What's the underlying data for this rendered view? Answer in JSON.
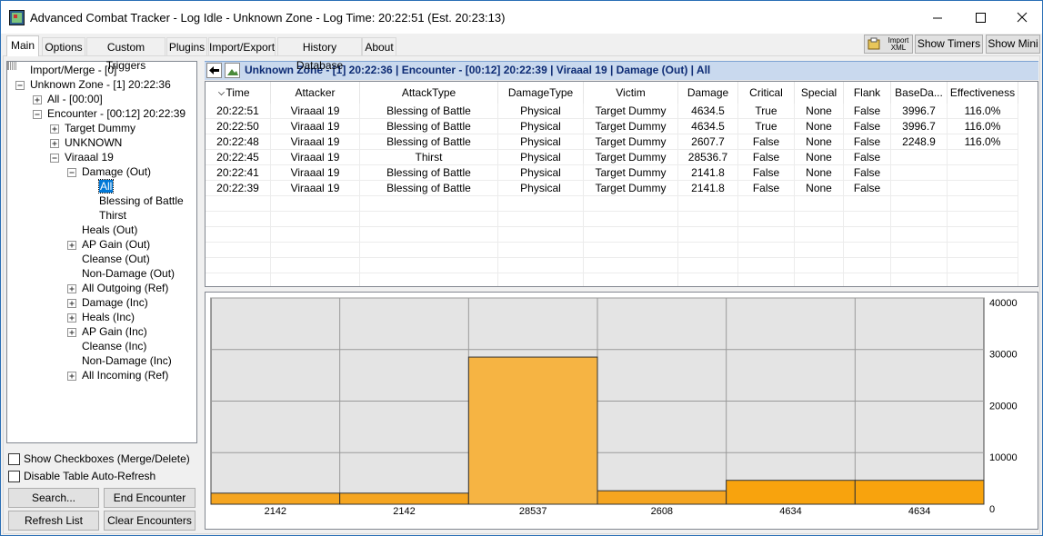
{
  "window": {
    "title": "Advanced Combat Tracker - Log Idle - Unknown Zone - Log Time: 20:22:51 (Est. 20:23:13)"
  },
  "tabs": [
    "Main",
    "Options",
    "Custom Triggers",
    "Plugins",
    "Import/Export",
    "History Database",
    "About"
  ],
  "toolbar": {
    "import_xml": "Import XML",
    "show_timers": "Show Timers",
    "show_mini": "Show Mini"
  },
  "tree": [
    {
      "label": "Import/Merge - [0]"
    },
    {
      "label": "Unknown Zone - [1] 20:22:36",
      "expanded": true,
      "children": [
        {
          "label": "All - [00:00]",
          "expanded": false
        },
        {
          "label": "Encounter - [00:12] 20:22:39",
          "expanded": true,
          "children": [
            {
              "label": "Target Dummy",
              "expanded": false
            },
            {
              "label": "UNKNOWN",
              "expanded": false
            },
            {
              "label": "Viraaal 19",
              "expanded": true,
              "children": [
                {
                  "label": "Damage (Out)",
                  "expanded": true,
                  "children": [
                    {
                      "label": "All",
                      "selected": true
                    },
                    {
                      "label": "Blessing of Battle"
                    },
                    {
                      "label": "Thirst"
                    }
                  ]
                },
                {
                  "label": "Heals (Out)"
                },
                {
                  "label": "AP Gain (Out)",
                  "expanded": false
                },
                {
                  "label": "Cleanse (Out)"
                },
                {
                  "label": "Non-Damage (Out)"
                },
                {
                  "label": "All Outgoing (Ref)",
                  "expanded": false
                },
                {
                  "label": "Damage (Inc)",
                  "expanded": false
                },
                {
                  "label": "Heals (Inc)",
                  "expanded": false
                },
                {
                  "label": "AP Gain (Inc)",
                  "expanded": false
                },
                {
                  "label": "Cleanse (Inc)"
                },
                {
                  "label": "Non-Damage (Inc)"
                },
                {
                  "label": "All Incoming (Ref)",
                  "expanded": false
                }
              ]
            }
          ]
        }
      ]
    }
  ],
  "checkboxes": [
    "Show Checkboxes (Merge/Delete)",
    "Disable Table Auto-Refresh"
  ],
  "buttons": [
    "Search...",
    "End Encounter",
    "Refresh List",
    "Clear Encounters"
  ],
  "breadcrumb": "Unknown Zone - [1] 20:22:36 | Encounter - [00:12] 20:22:39 | Viraaal 19 | Damage (Out) | All",
  "table": {
    "columns": [
      "Time",
      "Attacker",
      "AttackType",
      "DamageType",
      "Victim",
      "Damage",
      "Critical",
      "Special",
      "Flank",
      "BaseDa...",
      "Effectiveness"
    ],
    "rows": [
      [
        "20:22:51",
        "Viraaal 19",
        "Blessing of Battle",
        "Physical",
        "Target Dummy",
        "4634.5",
        "True",
        "None",
        "False",
        "3996.7",
        "116.0%"
      ],
      [
        "20:22:50",
        "Viraaal 19",
        "Blessing of Battle",
        "Physical",
        "Target Dummy",
        "4634.5",
        "True",
        "None",
        "False",
        "3996.7",
        "116.0%"
      ],
      [
        "20:22:48",
        "Viraaal 19",
        "Blessing of Battle",
        "Physical",
        "Target Dummy",
        "2607.7",
        "False",
        "None",
        "False",
        "2248.9",
        "116.0%"
      ],
      [
        "20:22:45",
        "Viraaal 19",
        "Thirst",
        "Physical",
        "Target Dummy",
        "28536.7",
        "False",
        "None",
        "False",
        null,
        null
      ],
      [
        "20:22:41",
        "Viraaal 19",
        "Blessing of Battle",
        "Physical",
        "Target Dummy",
        "2141.8",
        "False",
        "None",
        "False",
        null,
        null
      ],
      [
        "20:22:39",
        "Viraaal 19",
        "Blessing of Battle",
        "Physical",
        "Target Dummy",
        "2141.8",
        "False",
        "None",
        "False",
        null,
        null
      ]
    ]
  },
  "chart_data": {
    "type": "bar",
    "values": [
      2141.8,
      2141.8,
      28536.7,
      2607.7,
      4634.5,
      4634.5
    ],
    "value_labels": [
      "2142",
      "2142",
      "28537",
      "2608",
      "4634",
      "4634"
    ],
    "colors": [
      "#f5a520",
      "#f5a520",
      "#f6b443",
      "#f5a520",
      "#f8a30d",
      "#f8a30d"
    ],
    "ylim": [
      0,
      40000
    ],
    "yticks": [
      0,
      10000,
      20000,
      30000,
      40000
    ],
    "grid": true
  }
}
